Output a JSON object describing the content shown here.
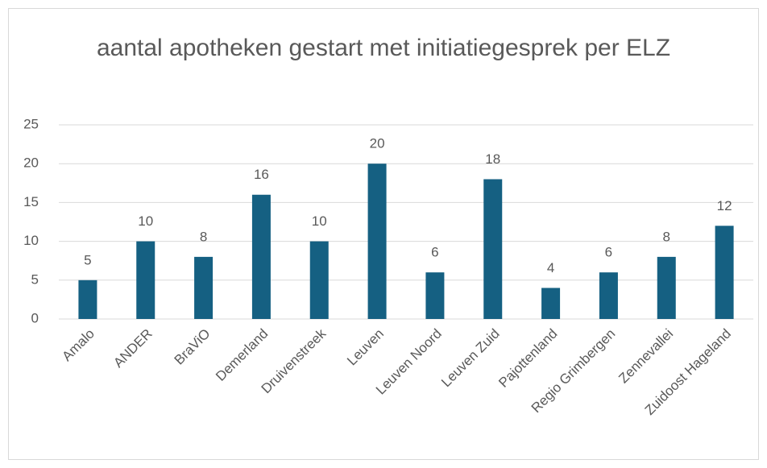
{
  "chart_data": {
    "type": "bar",
    "title": "aantal apotheken gestart met initiatiegesprek per ELZ",
    "categories": [
      "Amalo",
      "ANDER",
      "BraViO",
      "Demerland",
      "Druivenstreek",
      "Leuven",
      "Leuven Noord",
      "Leuven Zuid",
      "Pajottenland",
      "Regio Grimbergen",
      "Zennevallei",
      "Zuidoost Hageland"
    ],
    "values": [
      5,
      10,
      8,
      16,
      10,
      20,
      6,
      18,
      4,
      6,
      8,
      12
    ],
    "color": "#156082",
    "ylim": [
      0,
      25
    ],
    "yticks": [
      0,
      5,
      10,
      15,
      20,
      25
    ],
    "grid": true,
    "data_labels": true
  }
}
